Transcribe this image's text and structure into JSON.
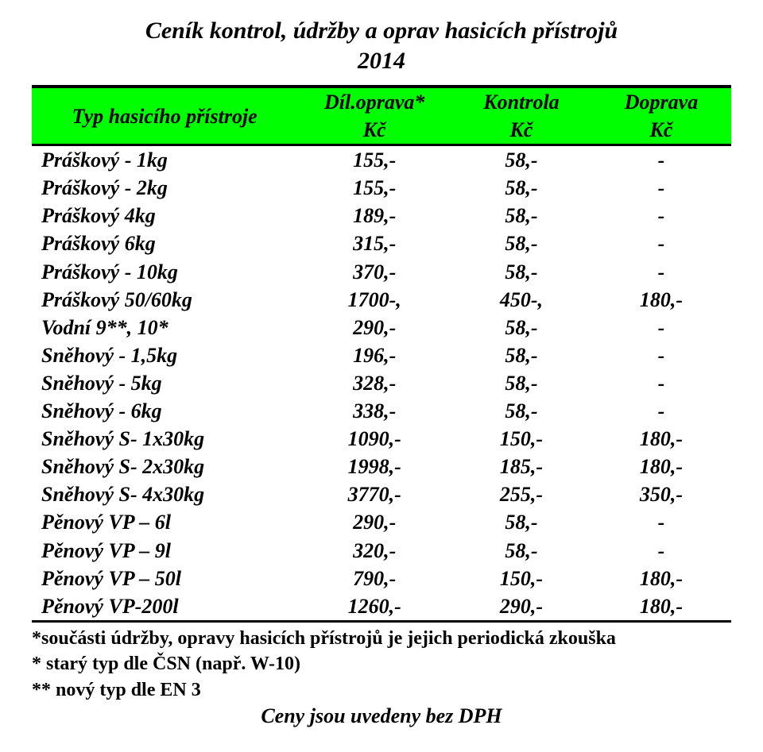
{
  "title_line1": "Ceník kontrol, údržby a oprav hasicích přístrojů",
  "title_line2": "2014",
  "header_bg": "#00ff00",
  "columns": {
    "name": {
      "top": "Typ hasicího přístroje",
      "bot": ""
    },
    "repair": {
      "top": "Díl.oprava*",
      "bot": "Kč"
    },
    "check": {
      "top": "Kontrola",
      "bot": "Kč"
    },
    "ship": {
      "top": "Doprava",
      "bot": "Kč"
    }
  },
  "rows": [
    {
      "name": "Práškový - 1kg",
      "repair": "155,-",
      "check": "58,-",
      "ship": "-"
    },
    {
      "name": "Práškový - 2kg",
      "repair": "155,-",
      "check": "58,-",
      "ship": "-"
    },
    {
      "name": "Práškový 4kg",
      "repair": "189,-",
      "check": "58,-",
      "ship": "-"
    },
    {
      "name": "Práškový 6kg",
      "repair": "315,-",
      "check": "58,-",
      "ship": "-"
    },
    {
      "name": "Práškový - 10kg",
      "repair": "370,-",
      "check": "58,-",
      "ship": "-"
    },
    {
      "name": "Práškový 50/60kg",
      "repair": "1700-,",
      "check": "450-,",
      "ship": "180,-"
    },
    {
      "name": "Vodní 9**, 10*",
      "repair": "290,-",
      "check": "58,-",
      "ship": "-"
    },
    {
      "name": "Sněhový - 1,5kg",
      "repair": "196,-",
      "check": "58,-",
      "ship": "-"
    },
    {
      "name": "Sněhový - 5kg",
      "repair": "328,-",
      "check": "58,-",
      "ship": "-"
    },
    {
      "name": "Sněhový - 6kg",
      "repair": "338,-",
      "check": "58,-",
      "ship": "-"
    },
    {
      "name": "Sněhový S- 1x30kg",
      "repair": "1090,-",
      "check": "150,-",
      "ship": "180,-"
    },
    {
      "name": "Sněhový S- 2x30kg",
      "repair": "1998,-",
      "check": "185,-",
      "ship": "180,-"
    },
    {
      "name": "Sněhový S- 4x30kg",
      "repair": "3770,-",
      "check": "255,-",
      "ship": "350,-"
    },
    {
      "name": "Pěnový  VP – 6l",
      "repair": "290,-",
      "check": "58,-",
      "ship": "-"
    },
    {
      "name": "Pěnový  VP – 9l",
      "repair": "320,-",
      "check": "58,-",
      "ship": "-"
    },
    {
      "name": "Pěnový  VP – 50l",
      "repair": "790,-",
      "check": "150,-",
      "ship": "180,-"
    },
    {
      "name": "Pěnový VP-200l",
      "repair": "1260,-",
      "check": "290,-",
      "ship": "180,-"
    }
  ],
  "notes": [
    "*součásti údržby, opravy hasicích přístrojů je jejich periodická zkouška",
    "* starý typ dle ČSN (např. W-10)",
    "** nový typ dle EN 3"
  ],
  "footer": "Ceny jsou uvedeny bez DPH"
}
